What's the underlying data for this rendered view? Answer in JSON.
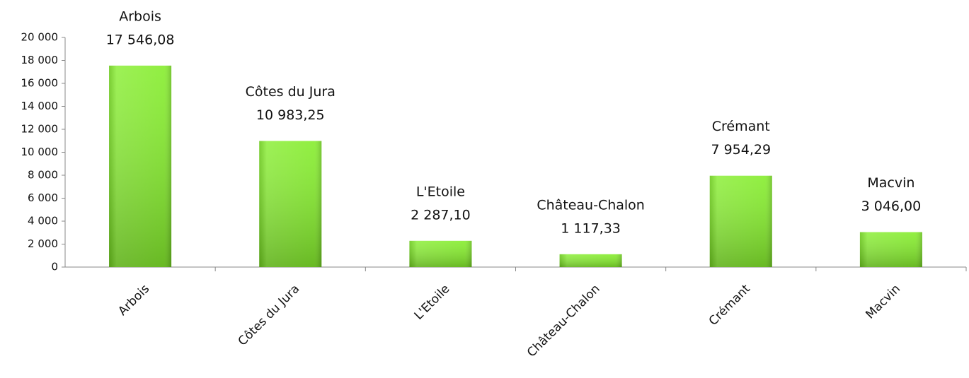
{
  "chart_data": {
    "type": "bar",
    "categories": [
      "Arbois",
      "Côtes du Jura",
      "L'Etoile",
      "Château-Chalon",
      "Crémant",
      "Macvin"
    ],
    "values": [
      17546.08,
      10983.25,
      2287.1,
      1117.33,
      7954.29,
      3046.0
    ],
    "value_labels": [
      "17 546,08",
      "10 983,25",
      "2 287,10",
      "1 117,33",
      "7 954,29",
      "3 046,00"
    ],
    "color": "#7fec22",
    "ylim": [
      0,
      20000
    ],
    "yticks": [
      0,
      {
        "value": 2000,
        "label": "2 000"
      },
      {
        "value": 4000,
        "label": "4 000"
      },
      {
        "value": 6000,
        "label": "6 000"
      },
      {
        "value": 8000,
        "label": "8 000"
      },
      {
        "value": 10000,
        "label": "10 000"
      },
      {
        "value": 12000,
        "label": "12 000"
      },
      {
        "value": 14000,
        "label": "14 000"
      },
      {
        "value": 16000,
        "label": "16 000"
      },
      {
        "value": 18000,
        "label": "18 000"
      },
      {
        "value": 20000,
        "label": "20 000"
      }
    ],
    "grid": false
  }
}
